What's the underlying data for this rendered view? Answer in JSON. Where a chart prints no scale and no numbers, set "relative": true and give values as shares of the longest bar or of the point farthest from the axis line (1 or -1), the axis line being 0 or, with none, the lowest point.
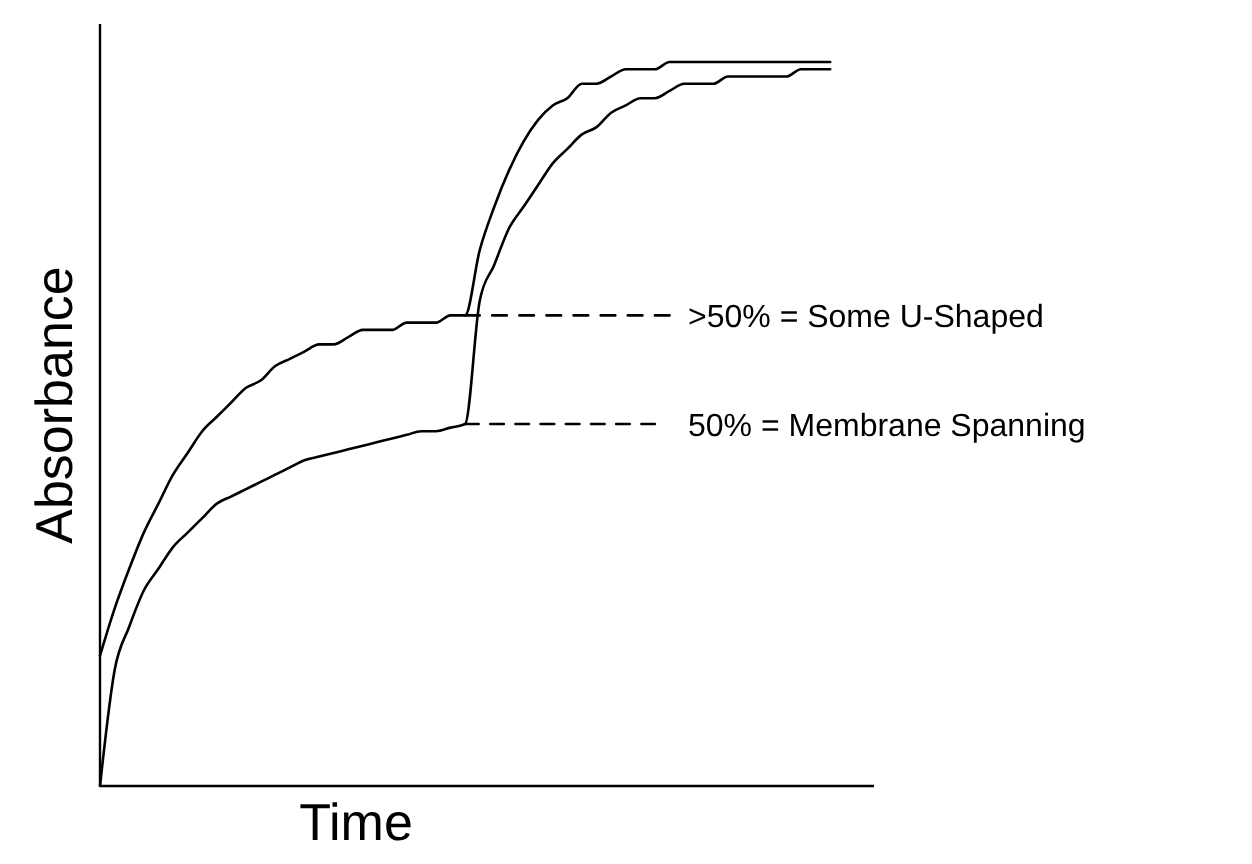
{
  "chart_data": {
    "type": "line",
    "relative": true,
    "xlabel": "Time",
    "ylabel": "Absorbance",
    "marker": "none",
    "line_style": "solid",
    "categories": [
      null,
      null,
      null,
      null,
      null,
      null,
      null,
      null,
      null,
      null,
      null,
      null,
      null,
      null,
      null,
      null,
      null,
      null,
      null,
      null,
      null,
      null,
      null,
      null,
      null,
      null,
      null,
      null,
      null,
      null,
      null,
      null,
      null,
      null,
      null,
      null,
      null,
      null,
      null,
      null,
      null,
      null,
      null,
      null,
      null,
      null,
      null,
      null,
      null,
      null,
      null,
      null,
      null,
      null
    ],
    "series": [
      {
        "color": "#000000",
        "values": [
          0.18,
          0.245,
          0.3,
          0.35,
          0.39,
          0.43,
          0.46,
          0.49,
          0.51,
          0.53,
          0.55,
          0.56,
          0.58,
          0.59,
          0.6,
          0.61,
          0.61,
          0.62,
          0.63,
          0.63,
          0.63,
          0.64,
          0.64,
          0.64,
          0.65,
          0.65,
          0.74,
          0.8,
          0.85,
          0.89,
          0.92,
          0.94,
          0.95,
          0.97,
          0.97,
          0.98,
          0.99,
          0.99,
          0.99,
          1,
          1,
          1,
          1,
          1,
          1,
          1,
          1,
          1,
          1,
          1,
          1,
          null,
          null,
          null
        ]
      },
      {
        "color": "#000000",
        "values": [
          0,
          0.16,
          0.22,
          0.27,
          0.3,
          0.33,
          0.35,
          0.37,
          0.39,
          0.4,
          0.41,
          0.42,
          0.43,
          0.44,
          0.45,
          0.455,
          0.46,
          0.465,
          0.47,
          0.475,
          0.48,
          0.485,
          0.49,
          0.49,
          0.495,
          0.5,
          0.67,
          0.72,
          0.77,
          0.8,
          0.83,
          0.86,
          0.88,
          0.9,
          0.91,
          0.93,
          0.94,
          0.95,
          0.95,
          0.96,
          0.97,
          0.97,
          0.97,
          0.98,
          0.98,
          0.98,
          0.98,
          0.98,
          0.99,
          0.99,
          0.99,
          null,
          null,
          null
        ]
      },
      {
        "color": "#000000",
        "line_style": "dashed",
        "values": [
          null,
          null,
          null,
          null,
          null,
          null,
          null,
          null,
          null,
          null,
          null,
          null,
          null,
          null,
          null,
          null,
          null,
          null,
          null,
          null,
          null,
          null,
          null,
          null,
          null,
          0.65,
          0.65,
          0.65,
          0.65,
          0.65,
          0.65,
          0.65,
          0.65,
          0.65,
          0.65,
          0.65,
          0.65,
          0.65,
          0.65,
          0.65,
          null,
          null,
          null,
          null,
          null,
          null,
          null,
          null,
          null,
          null,
          null,
          null,
          null,
          null
        ]
      },
      {
        "color": "#000000",
        "line_style": "dashed",
        "values": [
          null,
          null,
          null,
          null,
          null,
          null,
          null,
          null,
          null,
          null,
          null,
          null,
          null,
          null,
          null,
          null,
          null,
          null,
          null,
          null,
          null,
          null,
          null,
          null,
          null,
          0.5,
          0.5,
          0.5,
          0.5,
          0.5,
          0.5,
          0.5,
          0.5,
          0.5,
          0.5,
          0.5,
          0.5,
          0.5,
          0.5,
          null,
          null,
          null,
          null,
          null,
          null,
          null,
          null,
          null,
          null,
          null,
          null,
          null,
          null,
          null
        ]
      }
    ],
    "annotations": [
      ">50% = Some U-Shaped",
      "50% = Membrane Spanning"
    ]
  }
}
